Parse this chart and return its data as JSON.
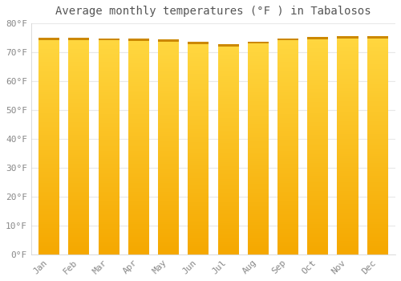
{
  "title": "Average monthly temperatures (°F ) in Tabalosos",
  "months": [
    "Jan",
    "Feb",
    "Mar",
    "Apr",
    "May",
    "Jun",
    "Jul",
    "Aug",
    "Sep",
    "Oct",
    "Nov",
    "Dec"
  ],
  "values": [
    75.0,
    75.0,
    74.8,
    74.7,
    74.5,
    73.5,
    72.7,
    73.7,
    74.8,
    75.3,
    75.6,
    75.6
  ],
  "bar_color_bottom": "#F5A800",
  "bar_color_top": "#FFD740",
  "ylim": [
    0,
    80
  ],
  "yticks": [
    0,
    10,
    20,
    30,
    40,
    50,
    60,
    70,
    80
  ],
  "ytick_labels": [
    "0°F",
    "10°F",
    "20°F",
    "30°F",
    "40°F",
    "50°F",
    "60°F",
    "70°F",
    "80°F"
  ],
  "bg_color": "#FFFFFF",
  "plot_bg_color": "#FFFFFF",
  "grid_color": "#E8E8E8",
  "title_fontsize": 10,
  "tick_fontsize": 8,
  "tick_color": "#888888",
  "bar_width": 0.7
}
